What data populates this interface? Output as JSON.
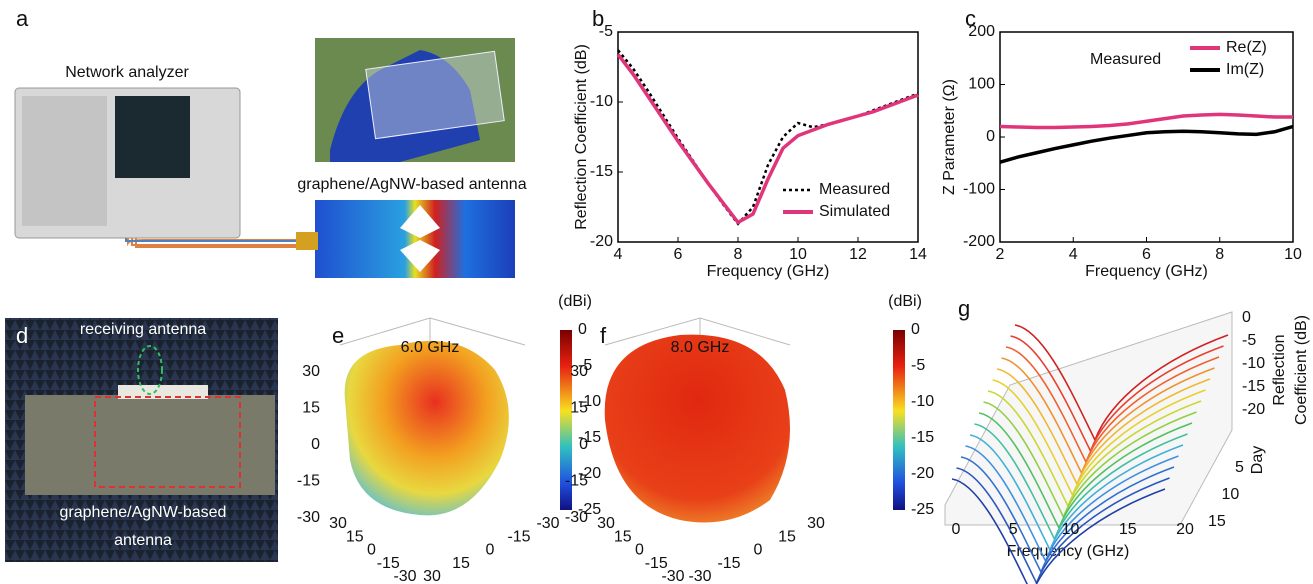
{
  "panel_a": {
    "label": "a",
    "analyzer": "Network analyzer",
    "antenna": "graphene/AgNW-based antenna"
  },
  "chart_data": [
    {
      "type": "line",
      "panel": "b",
      "xlabel": "Frequency (GHz)",
      "ylabel": "Reflection Coefficient (dB)",
      "xlim": [
        4,
        14
      ],
      "ylim": [
        -20,
        -5
      ],
      "xticks": [
        4,
        6,
        8,
        10,
        12,
        14
      ],
      "yticks": [
        -20,
        -15,
        -10,
        -5
      ],
      "legend": "lower right",
      "x": [
        4,
        4.5,
        5,
        5.5,
        6,
        6.5,
        7,
        7.5,
        8,
        8.5,
        9,
        9.5,
        10,
        10.5,
        11,
        11.5,
        12,
        12.5,
        13,
        13.5,
        14
      ],
      "series": [
        {
          "name": "Measured",
          "color": "#000000",
          "dash": "dotted",
          "values": [
            -6.3,
            -7.6,
            -9.2,
            -10.9,
            -12.6,
            -14.2,
            -15.8,
            -17.3,
            -18.7,
            -17.5,
            -14.5,
            -12.5,
            -11.5,
            -11.8,
            -11.6,
            -11.3,
            -11.0,
            -10.6,
            -10.2,
            -9.8,
            -9.4
          ]
        },
        {
          "name": "Simulated",
          "color": "#e0357a",
          "dash": "solid",
          "values": [
            -6.6,
            -8.0,
            -9.6,
            -11.2,
            -12.8,
            -14.3,
            -15.8,
            -17.2,
            -18.6,
            -18.0,
            -15.5,
            -13.3,
            -12.4,
            -12.0,
            -11.6,
            -11.3,
            -11.0,
            -10.7,
            -10.3,
            -9.9,
            -9.5
          ]
        }
      ]
    },
    {
      "type": "line",
      "panel": "c",
      "xlabel": "Frequency (GHz)",
      "ylabel": "Z Parameter (Ω)",
      "annotation": "Measured",
      "xlim": [
        2,
        10
      ],
      "ylim": [
        -200,
        200
      ],
      "xticks": [
        2,
        4,
        6,
        8,
        10
      ],
      "yticks": [
        -200,
        -100,
        0,
        100,
        200
      ],
      "legend": "upper right",
      "x": [
        2,
        2.5,
        3,
        3.5,
        4,
        4.5,
        5,
        5.5,
        6,
        6.5,
        7,
        7.5,
        8,
        8.5,
        9,
        9.5,
        10
      ],
      "series": [
        {
          "name": "Re(Z)",
          "color": "#e0357a",
          "dash": "solid",
          "values": [
            20,
            19,
            18,
            18,
            19,
            20,
            22,
            25,
            30,
            35,
            40,
            42,
            43,
            42,
            40,
            38,
            38
          ]
        },
        {
          "name": "Im(Z)",
          "color": "#000000",
          "dash": "solid",
          "values": [
            -48,
            -38,
            -30,
            -22,
            -15,
            -8,
            -2,
            3,
            8,
            10,
            11,
            10,
            8,
            6,
            5,
            10,
            20
          ]
        }
      ]
    }
  ],
  "panel_d": {
    "label": "d",
    "receiver": "receiving antenna",
    "antenna": [
      "graphene/AgNW-based",
      "antenna"
    ]
  },
  "panel_e": {
    "label": "e",
    "frequency": "6.0 GHz",
    "colorbar_unit": "(dBi)",
    "colorbar_ticks": [
      0,
      -5,
      -10,
      -15,
      -20,
      -25
    ],
    "z_ticks": [
      30,
      15,
      0,
      -15,
      -30
    ],
    "x_ticks": [
      30,
      15,
      0,
      -15,
      -30
    ],
    "y_ticks": [
      30,
      15,
      0,
      -15,
      -30
    ]
  },
  "panel_f": {
    "label": "f",
    "frequency": "8.0 GHz",
    "colorbar_unit": "(dBi)",
    "colorbar_ticks": [
      0,
      -5,
      -10,
      -15,
      -20,
      -25
    ],
    "z_ticks": [
      30,
      15,
      0,
      -15,
      -30
    ],
    "x_ticks": [
      30,
      15,
      0,
      -15,
      -30
    ],
    "y_ticks": [
      -30,
      -15,
      0,
      15,
      30
    ]
  },
  "panel_g": {
    "label": "g",
    "z_label": [
      "Reflection",
      "Coefficient (dB)"
    ],
    "z_ticks": [
      0,
      -5,
      -10,
      -15,
      -20
    ],
    "day_label": "Day",
    "day_ticks": [
      5,
      10,
      15
    ],
    "x_ticks": [
      0,
      5,
      10,
      15,
      20
    ],
    "x_label": "Frequency (GHz)"
  }
}
